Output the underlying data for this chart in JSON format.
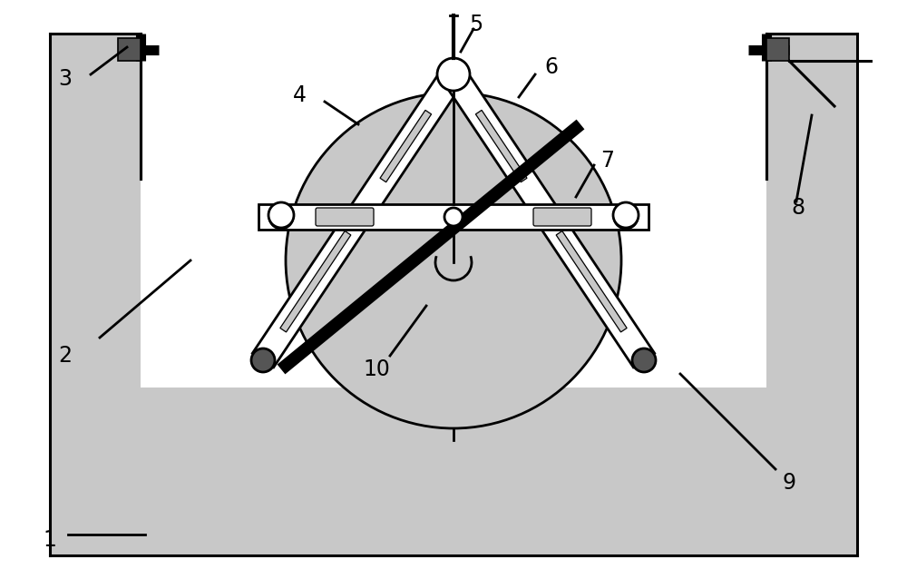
{
  "bg_color": "#ffffff",
  "light_gray": "#c8c8c8",
  "dark_gray": "#555555",
  "black": "#000000",
  "white": "#ffffff",
  "label_fontsize": 17,
  "line_lw": 2.0,
  "thick_lw": 7.0,
  "border_lw": 2.2,
  "figsize": [
    10.0,
    6.27
  ],
  "dpi": 100
}
